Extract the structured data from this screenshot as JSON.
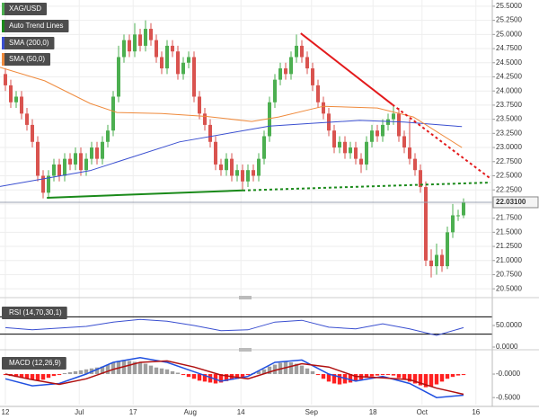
{
  "chart_data": [
    {
      "type": "candlestick",
      "title": "XAG/USD",
      "up_color": "#4caf50",
      "down_color": "#d9534f",
      "grid": true,
      "open": [
        24.3,
        24.1,
        23.8,
        23.9,
        23.6,
        23.4,
        23.1,
        22.5,
        22.2,
        22.5,
        22.7,
        22.5,
        22.8,
        22.7,
        22.9,
        22.6,
        22.8,
        23.0,
        22.8,
        23.1,
        23.3,
        23.9,
        24.6,
        24.9,
        24.7,
        25.0,
        24.8,
        25.1,
        24.9,
        24.6,
        24.4,
        24.8,
        24.7,
        24.3,
        24.5,
        24.6,
        23.9,
        23.6,
        23.4,
        23.1,
        22.7,
        22.6,
        22.8,
        22.5,
        22.6,
        22.4,
        22.6,
        22.5,
        22.8,
        23.2,
        23.8,
        24.2,
        24.4,
        24.3,
        24.6,
        24.8,
        24.6,
        24.4,
        24.1,
        23.8,
        23.6,
        23.3,
        23.0,
        23.1,
        22.9,
        23.0,
        22.8,
        22.7,
        23.1,
        23.3,
        23.2,
        23.4,
        23.5,
        23.6,
        23.2,
        23.0,
        22.8,
        22.6,
        22.3,
        21.0,
        20.9,
        21.1,
        20.9,
        21.5,
        21.8,
        21.8
      ],
      "high": [
        24.4,
        24.2,
        24.0,
        24.0,
        23.7,
        23.5,
        23.2,
        22.6,
        22.6,
        22.8,
        22.8,
        22.9,
        22.9,
        23.0,
        23.0,
        22.9,
        23.1,
        23.1,
        23.2,
        23.4,
        24.0,
        24.8,
        25.0,
        25.0,
        25.2,
        25.1,
        25.25,
        25.2,
        25.0,
        24.7,
        24.9,
        24.9,
        24.8,
        24.6,
        24.7,
        24.7,
        24.0,
        23.7,
        23.5,
        23.2,
        22.8,
        22.9,
        22.9,
        22.7,
        22.7,
        22.7,
        22.7,
        22.9,
        23.3,
        23.9,
        24.3,
        24.5,
        24.5,
        24.7,
        25.0,
        24.9,
        24.7,
        24.5,
        24.2,
        23.9,
        23.7,
        23.4,
        23.2,
        23.2,
        23.1,
        23.1,
        22.9,
        23.2,
        23.4,
        23.4,
        23.5,
        23.6,
        23.75,
        23.7,
        23.3,
        23.5,
        22.9,
        22.7,
        22.4,
        21.2,
        21.3,
        21.2,
        21.6,
        22.0,
        21.9,
        22.1
      ],
      "low": [
        24.0,
        23.7,
        23.7,
        23.5,
        23.3,
        23.0,
        22.4,
        22.1,
        22.1,
        22.4,
        22.4,
        22.4,
        22.6,
        22.6,
        22.5,
        22.5,
        22.7,
        22.7,
        22.7,
        23.0,
        23.2,
        23.8,
        24.5,
        24.6,
        24.6,
        24.7,
        24.7,
        24.8,
        24.5,
        24.3,
        24.3,
        24.6,
        24.2,
        24.2,
        24.4,
        23.8,
        23.5,
        23.3,
        23.0,
        22.6,
        22.5,
        22.5,
        22.4,
        22.4,
        22.25,
        22.3,
        22.4,
        22.4,
        22.7,
        23.1,
        23.7,
        24.1,
        24.2,
        24.2,
        24.5,
        24.5,
        24.3,
        24.0,
        23.7,
        23.5,
        23.2,
        22.9,
        22.9,
        22.8,
        22.8,
        22.7,
        22.55,
        22.6,
        23.0,
        23.1,
        23.1,
        23.3,
        23.4,
        23.1,
        22.9,
        22.7,
        22.5,
        22.2,
        20.9,
        20.7,
        20.75,
        20.8,
        20.85,
        21.4,
        21.7,
        21.75
      ],
      "close": [
        24.1,
        23.8,
        23.9,
        23.6,
        23.4,
        23.1,
        22.5,
        22.2,
        22.5,
        22.7,
        22.5,
        22.8,
        22.7,
        22.9,
        22.6,
        22.8,
        23.0,
        22.8,
        23.1,
        23.3,
        23.9,
        24.6,
        24.9,
        24.7,
        25.0,
        24.8,
        25.1,
        24.9,
        24.6,
        24.4,
        24.8,
        24.7,
        24.3,
        24.5,
        24.6,
        23.9,
        23.6,
        23.4,
        23.1,
        22.7,
        22.6,
        22.8,
        22.5,
        22.6,
        22.4,
        22.6,
        22.5,
        22.8,
        23.2,
        23.8,
        24.2,
        24.4,
        24.3,
        24.6,
        24.8,
        24.6,
        24.4,
        24.1,
        23.8,
        23.6,
        23.3,
        23.0,
        23.1,
        22.9,
        23.0,
        22.8,
        22.7,
        23.1,
        23.3,
        23.2,
        23.4,
        23.5,
        23.6,
        23.2,
        23.0,
        22.8,
        22.6,
        22.3,
        21.0,
        20.9,
        21.1,
        20.9,
        21.5,
        21.8,
        21.8,
        22.031
      ],
      "last": {
        "value": 22.031,
        "label": "22.03100"
      },
      "series": [
        {
          "name": "SMA (200,0)",
          "color": "#3a4fd0",
          "x": [
            -1,
            15.7,
            32.3,
            49,
            57.3,
            65.7,
            74,
            84.7
          ],
          "values": [
            22.31,
            22.59,
            23.1,
            23.38,
            23.43,
            23.48,
            23.45,
            23.37
          ]
        },
        {
          "name": "SMA (50,0)",
          "color": "#ef8a3c",
          "x": [
            -1,
            7.3,
            15.7,
            20.7,
            29,
            37.3,
            45.7,
            50.7,
            59,
            69,
            75.7,
            84.7
          ],
          "values": [
            24.42,
            24.18,
            23.78,
            23.62,
            23.6,
            23.55,
            23.46,
            23.54,
            23.73,
            23.7,
            23.54,
            23.0
          ]
        }
      ],
      "trend_lines": {
        "name": "Auto Trend Lines",
        "lines": [
          {
            "color": "#e31a1c",
            "style": "solid",
            "x": [
              54.8,
              71.8
            ],
            "values": [
              25.02,
              23.76
            ]
          },
          {
            "color": "#e31a1c",
            "style": "dotted",
            "x": [
              71.8,
              90
            ],
            "values": [
              23.76,
              22.45
            ]
          },
          {
            "color": "#1a8a1a",
            "style": "solid",
            "x": [
              7.7,
              44
            ],
            "values": [
              22.11,
              22.24
            ]
          },
          {
            "color": "#1a8a1a",
            "style": "dotted",
            "x": [
              44,
              90
            ],
            "values": [
              22.24,
              22.38
            ]
          }
        ]
      },
      "xlim": [
        -1,
        90
      ],
      "xticks": [
        {
          "value": 0,
          "label": "12"
        },
        {
          "value": 13.7,
          "label": "Jul"
        },
        {
          "value": 23.7,
          "label": "17"
        },
        {
          "value": 34.3,
          "label": "Aug"
        },
        {
          "value": 43.7,
          "label": "14"
        },
        {
          "value": 56.8,
          "label": "Sep"
        },
        {
          "value": 68.2,
          "label": "18"
        },
        {
          "value": 77.3,
          "label": "Oct"
        },
        {
          "value": 87.3,
          "label": "16"
        }
      ],
      "ylim": [
        20.36,
        25.61
      ],
      "yticks": [
        {
          "value": 20.5,
          "label": "20.5000"
        },
        {
          "value": 20.75,
          "label": "20.7500"
        },
        {
          "value": 21,
          "label": "21.0000"
        },
        {
          "value": 21.25,
          "label": "21.2500"
        },
        {
          "value": 21.5,
          "label": "21.5000"
        },
        {
          "value": 21.75,
          "label": "21.7500"
        },
        {
          "value": 22,
          "label": "22.0000"
        },
        {
          "value": 22.25,
          "label": "22.2500"
        },
        {
          "value": 22.5,
          "label": "22.5000"
        },
        {
          "value": 22.75,
          "label": "22.7500"
        },
        {
          "value": 23,
          "label": "23.0000"
        },
        {
          "value": 23.25,
          "label": "23.2500"
        },
        {
          "value": 23.5,
          "label": "23.5000"
        },
        {
          "value": 23.75,
          "label": "23.7500"
        },
        {
          "value": 24,
          "label": "24.0000"
        },
        {
          "value": 24.25,
          "label": "24.2500"
        },
        {
          "value": 24.5,
          "label": "24.5000"
        },
        {
          "value": 24.75,
          "label": "24.7500"
        },
        {
          "value": 25,
          "label": "25.0000"
        },
        {
          "value": 25.25,
          "label": "25.2500"
        },
        {
          "value": 25.5,
          "label": "25.5000"
        }
      ]
    },
    {
      "type": "line",
      "title": "RSI (14,70,30,1)",
      "x": [
        0,
        5,
        10,
        15,
        20,
        25,
        30,
        35,
        40,
        45,
        50,
        55,
        60,
        65,
        70,
        75,
        80,
        85
      ],
      "series": [
        {
          "color": "#3a4fd0",
          "values": [
            45,
            40,
            44,
            48,
            58,
            64,
            60,
            50,
            38,
            40,
            58,
            62,
            46,
            42,
            54,
            42,
            27,
            45
          ]
        }
      ],
      "levels": [
        70,
        30
      ],
      "ylim": [
        0,
        100
      ],
      "yticks": [
        {
          "value": 50,
          "label": "50.0000"
        },
        {
          "value": 0,
          "label": "0.0000"
        }
      ]
    },
    {
      "type": "macd",
      "title": "MACD (12,26,9)",
      "histogram": {
        "up_color": "#9e9e9e",
        "down_color": "#ff2020",
        "values": [
          -0.02,
          -0.04,
          -0.06,
          -0.08,
          -0.1,
          -0.12,
          -0.14,
          -0.12,
          -0.08,
          -0.04,
          -0.02,
          0.02,
          0.04,
          0.06,
          0.08,
          0.1,
          0.12,
          0.14,
          0.16,
          0.2,
          0.24,
          0.28,
          0.3,
          0.28,
          0.26,
          0.24,
          0.22,
          0.18,
          0.14,
          0.12,
          0.1,
          0.06,
          0.03,
          -0.02,
          -0.06,
          -0.1,
          -0.14,
          -0.16,
          -0.18,
          -0.2,
          -0.18,
          -0.15,
          -0.12,
          -0.1,
          -0.06,
          -0.02,
          0.02,
          0.06,
          0.1,
          0.16,
          0.2,
          0.24,
          0.26,
          0.25,
          0.22,
          0.18,
          0.12,
          0.06,
          -0.02,
          -0.1,
          -0.16,
          -0.2,
          -0.22,
          -0.2,
          -0.18,
          -0.15,
          -0.12,
          -0.08,
          -0.05,
          -0.03,
          -0.02,
          -0.02,
          -0.03,
          -0.08,
          -0.12,
          -0.16,
          -0.2,
          -0.24,
          -0.28,
          -0.26,
          -0.22,
          -0.16,
          -0.1,
          -0.06,
          -0.03,
          -0.02
        ]
      },
      "x": [
        0,
        5,
        10,
        15,
        20,
        25,
        30,
        35,
        40,
        45,
        50,
        55,
        60,
        65,
        70,
        75,
        80,
        85
      ],
      "series": [
        {
          "color": "#2050e0",
          "values": [
            -0.1,
            -0.25,
            -0.2,
            0.0,
            0.25,
            0.35,
            0.25,
            0.05,
            -0.15,
            -0.05,
            0.25,
            0.3,
            0.0,
            -0.15,
            -0.05,
            -0.2,
            -0.5,
            -0.45
          ]
        },
        {
          "color": "#b01010",
          "values": [
            0.0,
            -0.12,
            -0.22,
            -0.1,
            0.1,
            0.25,
            0.28,
            0.15,
            -0.02,
            -0.1,
            0.08,
            0.22,
            0.15,
            -0.05,
            -0.08,
            -0.12,
            -0.3,
            -0.43
          ]
        }
      ],
      "ylim": [
        -0.65,
        0.46
      ],
      "yticks": [
        {
          "value": 0,
          "label": "-0.0000"
        },
        {
          "value": -0.5,
          "label": "-0.5000"
        }
      ]
    }
  ]
}
